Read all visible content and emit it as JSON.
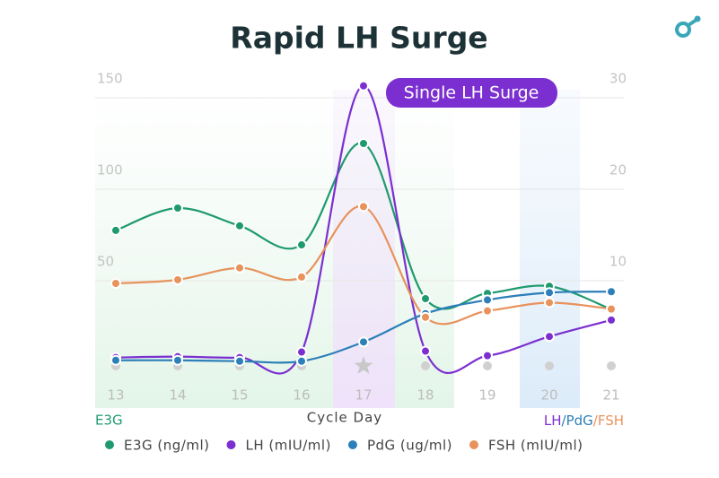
{
  "chart_data": {
    "type": "line",
    "title": "Rapid LH Surge",
    "annotation": "Single LH Surge",
    "xlabel": "Cycle Day",
    "ylabel": "E3G",
    "y2label": [
      "LH",
      "/",
      "PdG",
      "/",
      "FSH"
    ],
    "y2label_colors": [
      "#7b2fd0",
      "#2c7fb8",
      "#2c7fb8",
      "#e8925c",
      "#e8925c"
    ],
    "categories": [
      "13",
      "14",
      "15",
      "16",
      "17",
      "18",
      "19",
      "20",
      "21"
    ],
    "ylim": [
      0,
      150
    ],
    "yticks": [
      50,
      100,
      150
    ],
    "y2lim": [
      0,
      30
    ],
    "y2ticks": [
      10,
      20,
      30
    ],
    "grid": true,
    "series": [
      {
        "name": "E3G (ng/ml)",
        "color": "#1f9a6e",
        "values": [
          77.5,
          89.7,
          80,
          69.6,
          125,
          40.2,
          43.1,
          47,
          34.3
        ]
      },
      {
        "name": "LH (mIU/ml)",
        "color": "#7b2fd0",
        "axis": "y2",
        "values": [
          1.6,
          1.7,
          1.6,
          2.2,
          31.3,
          2.3,
          1.8,
          3.9,
          5.7
        ]
      },
      {
        "name": "PdG (ug/ml)",
        "color": "#2c7fb8",
        "axis": "y2",
        "values": [
          1.3,
          1.3,
          1.2,
          1.2,
          3.3,
          6.4,
          7.9,
          8.7,
          8.8
        ]
      },
      {
        "name": "FSH (mIU/ml)",
        "color": "#e8925c",
        "axis": "y2",
        "values": [
          9.7,
          10.1,
          11.4,
          10.4,
          18.1,
          6.0,
          6.7,
          7.6,
          6.9
        ]
      }
    ]
  }
}
